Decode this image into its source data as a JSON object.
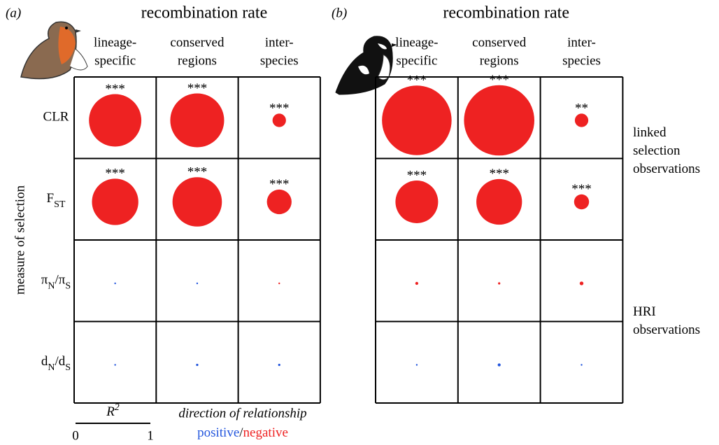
{
  "chart_data": [
    {
      "type": "bubble",
      "panel": "(a)",
      "title": "recombination rate",
      "categories": [
        [
          "lineage-",
          "specific"
        ],
        [
          "conserved",
          "regions"
        ],
        [
          "inter-",
          "species"
        ]
      ],
      "series": [
        {
          "name": [
            "CLR"
          ],
          "name_color": "#f08030",
          "values": [
            0.7,
            0.72,
            0.18
          ],
          "colors": [
            "#ee2222",
            "#ee2222",
            "#ee2222"
          ],
          "labels": [
            "***",
            "***",
            "***"
          ]
        },
        {
          "name": [
            "F",
            "ST"
          ],
          "name_color": "#3a9a3a",
          "values": [
            0.62,
            0.66,
            0.33
          ],
          "colors": [
            "#ee2222",
            "#ee2222",
            "#ee2222"
          ],
          "labels": [
            "***",
            "***",
            "***"
          ]
        },
        {
          "name": [
            "π",
            "N",
            "/π",
            "S"
          ],
          "name_color": "#f08030",
          "values": [
            0.02,
            0.02,
            0.02
          ],
          "colors": [
            "#2255dd",
            "#2255dd",
            "#ee2222"
          ],
          "labels": [
            null,
            null,
            null
          ]
        },
        {
          "name": [
            "d",
            "N",
            "/d",
            "S"
          ],
          "name_color": "#2a88c8",
          "values": [
            0.02,
            0.03,
            0.03
          ],
          "colors": [
            "#2255dd",
            "#2255dd",
            "#2255dd"
          ],
          "labels": [
            null,
            null,
            null
          ]
        }
      ],
      "ylabel": "measure of selection",
      "size_label": [
        "R",
        "2"
      ],
      "size_lim": [
        0,
        1
      ],
      "size_ticks": [
        0,
        1
      ],
      "legend_title": "direction of relationship",
      "legend": [
        {
          "name": "positive",
          "color": "#2255dd"
        },
        {
          "name": "/",
          "color": "#000000"
        },
        {
          "name": "negative",
          "color": "#ee2222"
        }
      ]
    },
    {
      "type": "bubble",
      "panel": "(b)",
      "title": "recombination rate",
      "categories": [
        [
          "lineage-",
          "specific"
        ],
        [
          "conserved",
          "regions"
        ],
        [
          "inter-",
          "species"
        ]
      ],
      "series": [
        {
          "values": [
            0.93,
            0.94,
            0.18
          ],
          "colors": [
            "#ee2222",
            "#ee2222",
            "#ee2222"
          ],
          "labels": [
            "***",
            "***",
            "**"
          ]
        },
        {
          "values": [
            0.57,
            0.61,
            0.2
          ],
          "colors": [
            "#ee2222",
            "#ee2222",
            "#ee2222"
          ],
          "labels": [
            "***",
            "***",
            "***"
          ]
        },
        {
          "values": [
            0.04,
            0.03,
            0.05
          ],
          "colors": [
            "#ee2222",
            "#ee2222",
            "#ee2222"
          ],
          "labels": [
            null,
            null,
            null
          ]
        },
        {
          "values": [
            0.02,
            0.04,
            0.02
          ],
          "colors": [
            "#2255dd",
            "#2255dd",
            "#2255dd"
          ],
          "labels": [
            null,
            null,
            null
          ]
        }
      ],
      "annotations": [
        [
          "linked",
          "selection",
          "observations"
        ],
        [
          "HRI",
          "observations"
        ]
      ]
    }
  ]
}
